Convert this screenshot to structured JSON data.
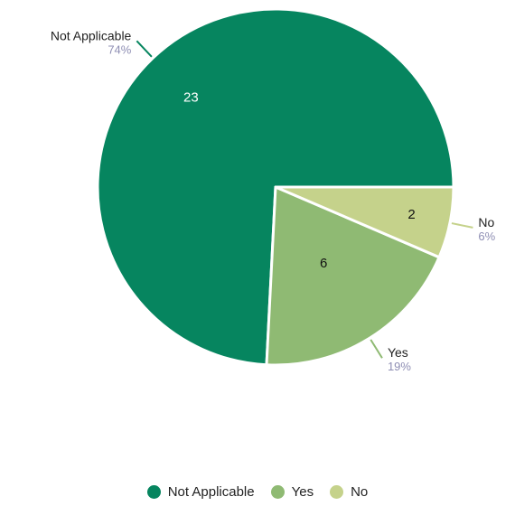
{
  "chart_data": {
    "type": "pie",
    "categories": [
      "Not Applicable",
      "Yes",
      "No"
    ],
    "values": [
      23,
      6,
      2
    ],
    "percent_labels": [
      "74%",
      "19%",
      "6%"
    ],
    "colors": [
      "#06855f",
      "#8fba73",
      "#c5d28b"
    ],
    "count_label_colors": [
      "#ffffff",
      "#111111",
      "#111111"
    ],
    "legend_position": "bottom"
  },
  "legend": {
    "items": [
      {
        "label": "Not Applicable",
        "color": "#06855f"
      },
      {
        "label": "Yes",
        "color": "#8fba73"
      },
      {
        "label": "No",
        "color": "#c5d28b"
      }
    ]
  }
}
